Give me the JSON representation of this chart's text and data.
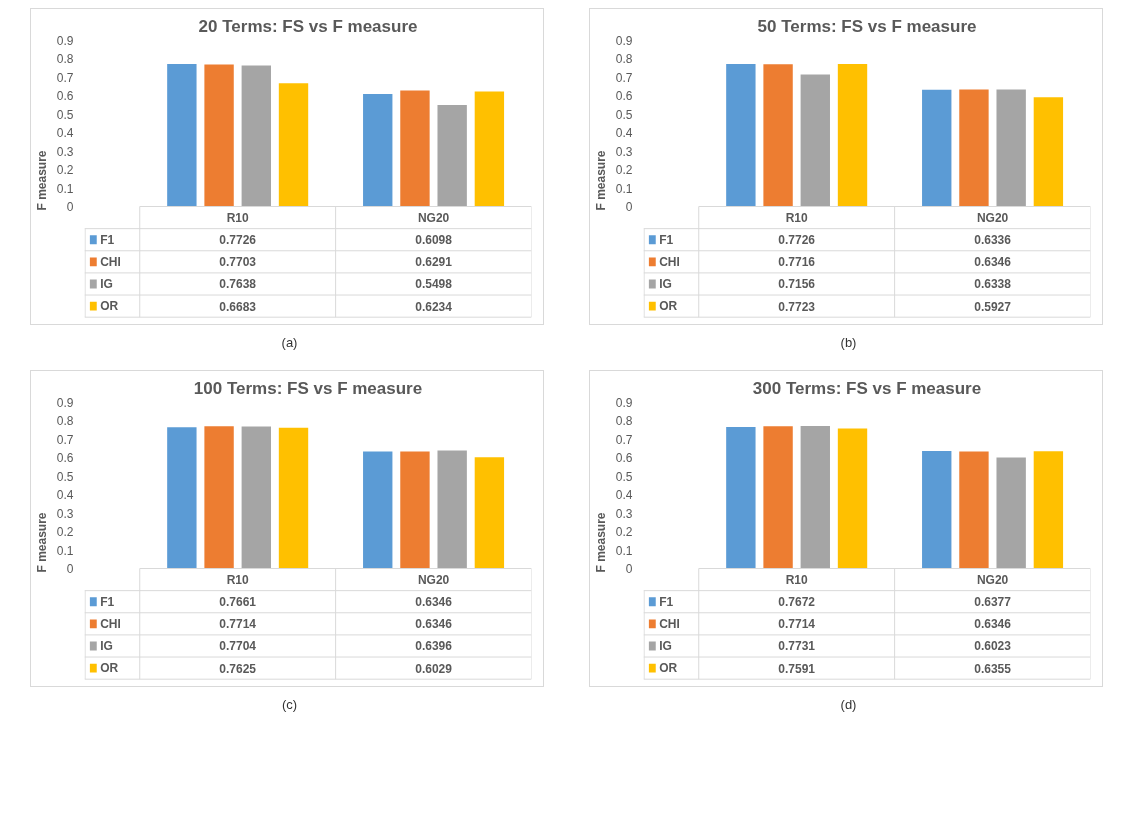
{
  "chart_data": [
    {
      "type": "bar",
      "title": "20 Terms: FS vs F measure",
      "ylabel": "F measure",
      "categories": [
        "R10",
        "NG20"
      ],
      "ylim": [
        0,
        0.9
      ],
      "yticks": [
        0,
        0.1,
        0.2,
        0.3,
        0.4,
        0.5,
        0.6,
        0.7,
        0.8,
        0.9
      ],
      "data_labels": true,
      "legend": "bottom",
      "grid": false,
      "annotations": [
        "(a)"
      ],
      "series": [
        {
          "name": "F1",
          "color": "#5b9bd5",
          "values": [
            0.7726,
            0.6098
          ]
        },
        {
          "name": "CHI",
          "color": "#ed7d31",
          "values": [
            0.7703,
            0.6291
          ]
        },
        {
          "name": "IG",
          "color": "#a5a5a5",
          "values": [
            0.7638,
            0.5498
          ]
        },
        {
          "name": "OR",
          "color": "#ffc000",
          "values": [
            0.6683,
            0.6234
          ]
        }
      ]
    },
    {
      "type": "bar",
      "title": "50 Terms: FS vs F measure",
      "ylabel": "F measure",
      "categories": [
        "R10",
        "NG20"
      ],
      "ylim": [
        0,
        0.9
      ],
      "yticks": [
        0,
        0.1,
        0.2,
        0.3,
        0.4,
        0.5,
        0.6,
        0.7,
        0.8,
        0.9
      ],
      "data_labels": true,
      "legend": "bottom",
      "grid": false,
      "annotations": [
        "(b)"
      ],
      "series": [
        {
          "name": "F1",
          "color": "#5b9bd5",
          "values": [
            0.7726,
            0.6336
          ]
        },
        {
          "name": "CHI",
          "color": "#ed7d31",
          "values": [
            0.7716,
            0.6346
          ]
        },
        {
          "name": "IG",
          "color": "#a5a5a5",
          "values": [
            0.7156,
            0.6338
          ]
        },
        {
          "name": "OR",
          "color": "#ffc000",
          "values": [
            0.7723,
            0.5927
          ]
        }
      ]
    },
    {
      "type": "bar",
      "title": "100 Terms: FS vs F measure",
      "ylabel": "F measure",
      "categories": [
        "R10",
        "NG20"
      ],
      "ylim": [
        0,
        0.9
      ],
      "yticks": [
        0,
        0.1,
        0.2,
        0.3,
        0.4,
        0.5,
        0.6,
        0.7,
        0.8,
        0.9
      ],
      "data_labels": true,
      "legend": "bottom",
      "grid": false,
      "annotations": [
        "(c)"
      ],
      "series": [
        {
          "name": "F1",
          "color": "#5b9bd5",
          "values": [
            0.7661,
            0.6346
          ]
        },
        {
          "name": "CHI",
          "color": "#ed7d31",
          "values": [
            0.7714,
            0.6346
          ]
        },
        {
          "name": "IG",
          "color": "#a5a5a5",
          "values": [
            0.7704,
            0.6396
          ]
        },
        {
          "name": "OR",
          "color": "#ffc000",
          "values": [
            0.7625,
            0.6029
          ]
        }
      ]
    },
    {
      "type": "bar",
      "title": "300 Terms: FS vs F measure",
      "ylabel": "F measure",
      "categories": [
        "R10",
        "NG20"
      ],
      "ylim": [
        0,
        0.9
      ],
      "yticks": [
        0,
        0.1,
        0.2,
        0.3,
        0.4,
        0.5,
        0.6,
        0.7,
        0.8,
        0.9
      ],
      "data_labels": true,
      "legend": "bottom",
      "grid": false,
      "annotations": [
        "(d)"
      ],
      "series": [
        {
          "name": "F1",
          "color": "#5b9bd5",
          "values": [
            0.7672,
            0.6377
          ]
        },
        {
          "name": "CHI",
          "color": "#ed7d31",
          "values": [
            0.7714,
            0.6346
          ]
        },
        {
          "name": "IG",
          "color": "#a5a5a5",
          "values": [
            0.7731,
            0.6023
          ]
        },
        {
          "name": "OR",
          "color": "#ffc000",
          "values": [
            0.7591,
            0.6355
          ]
        }
      ]
    }
  ]
}
